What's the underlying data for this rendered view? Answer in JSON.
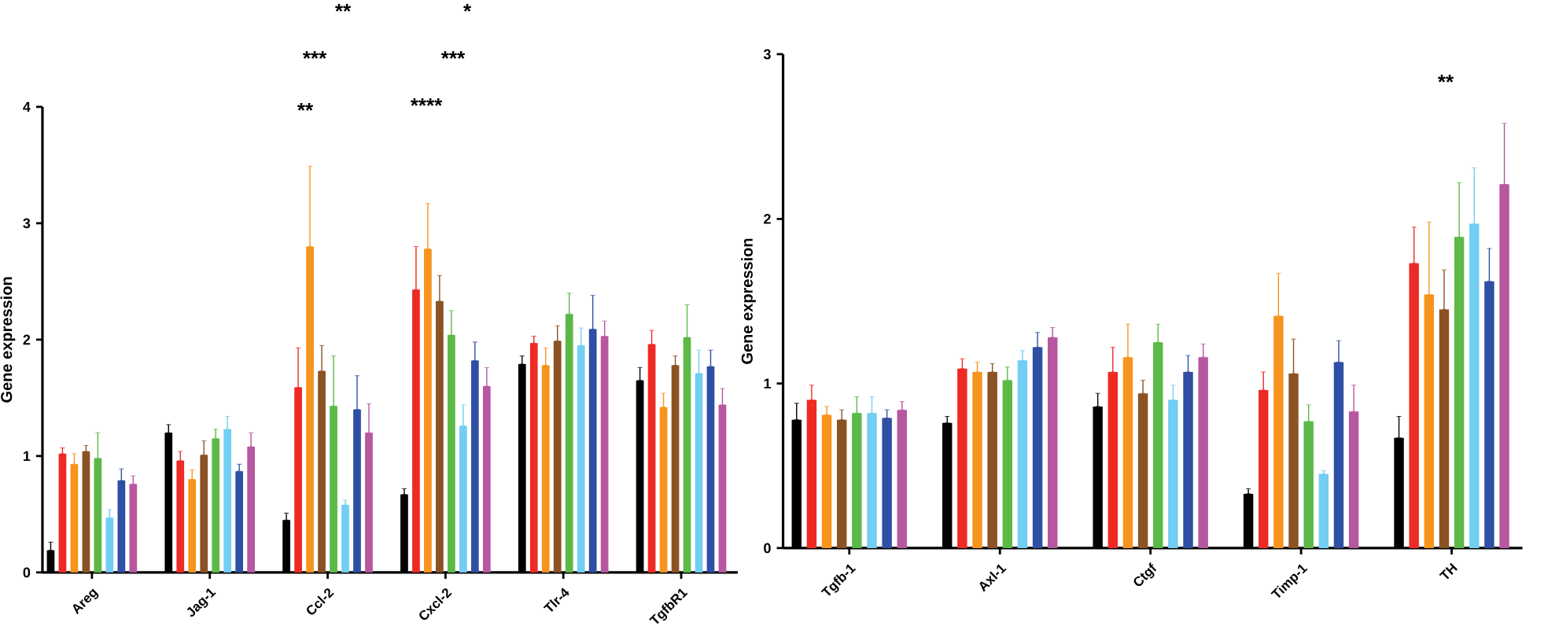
{
  "chart_data": [
    {
      "type": "bar",
      "ylabel": "Gene expression",
      "categories": [
        "Areg",
        "Jag-1",
        "Ccl-2",
        "Cxcl-2",
        "Tlr-4",
        "TgfbR1"
      ],
      "ylim": [
        0,
        4
      ],
      "yticks": [
        0,
        1,
        2,
        3,
        4
      ],
      "series": [
        {
          "color": "#000000",
          "values": [
            0.19,
            1.2,
            0.45,
            0.67,
            1.79,
            1.65
          ],
          "errors": [
            [
              0.19,
              0.26
            ],
            [
              1.2,
              1.27
            ],
            [
              0.45,
              0.51
            ],
            [
              0.67,
              0.72
            ],
            [
              1.79,
              1.86
            ],
            [
              1.65,
              1.76
            ]
          ]
        },
        {
          "color": "#ee2a24",
          "values": [
            1.02,
            0.96,
            1.59,
            2.43,
            1.97,
            1.96
          ],
          "errors": [
            [
              1.02,
              1.07
            ],
            [
              0.96,
              1.04
            ],
            [
              1.59,
              1.93
            ],
            [
              2.43,
              2.8
            ],
            [
              1.97,
              2.03
            ],
            [
              1.96,
              2.08
            ]
          ]
        },
        {
          "color": "#f7941d",
          "values": [
            0.93,
            0.8,
            2.8,
            2.78,
            1.78,
            1.42
          ],
          "errors": [
            [
              0.93,
              1.02
            ],
            [
              0.8,
              0.88
            ],
            [
              2.8,
              3.49
            ],
            [
              2.78,
              3.17
            ],
            [
              1.78,
              1.93
            ],
            [
              1.42,
              1.54
            ]
          ]
        },
        {
          "color": "#8b5223",
          "values": [
            1.04,
            1.01,
            1.73,
            2.33,
            1.99,
            1.78
          ],
          "errors": [
            [
              1.04,
              1.09
            ],
            [
              1.01,
              1.13
            ],
            [
              1.73,
              1.95
            ],
            [
              2.33,
              2.55
            ],
            [
              1.99,
              2.12
            ],
            [
              1.78,
              1.86
            ]
          ]
        },
        {
          "color": "#5cb947",
          "values": [
            0.98,
            1.15,
            1.43,
            2.04,
            2.22,
            2.02
          ],
          "errors": [
            [
              0.98,
              1.2
            ],
            [
              1.15,
              1.23
            ],
            [
              1.43,
              1.86
            ],
            [
              2.04,
              2.25
            ],
            [
              2.22,
              2.4
            ],
            [
              2.02,
              2.3
            ]
          ]
        },
        {
          "color": "#72cef2",
          "values": [
            0.47,
            1.23,
            0.58,
            1.26,
            1.95,
            1.71
          ],
          "errors": [
            [
              0.47,
              0.54
            ],
            [
              1.23,
              1.34
            ],
            [
              0.58,
              0.62
            ],
            [
              1.26,
              1.44
            ],
            [
              1.95,
              2.1
            ],
            [
              1.71,
              1.91
            ]
          ]
        },
        {
          "color": "#2e4fa3",
          "values": [
            0.79,
            0.87,
            1.4,
            1.82,
            2.09,
            1.77
          ],
          "errors": [
            [
              0.79,
              0.89
            ],
            [
              0.87,
              0.93
            ],
            [
              1.4,
              1.69
            ],
            [
              1.82,
              1.98
            ],
            [
              2.09,
              2.38
            ],
            [
              1.77,
              1.91
            ]
          ]
        },
        {
          "color": "#b7579f",
          "values": [
            0.76,
            1.08,
            1.2,
            1.6,
            2.03,
            1.44
          ],
          "errors": [
            [
              0.76,
              0.83
            ],
            [
              1.08,
              1.2
            ],
            [
              1.2,
              1.45
            ],
            [
              1.6,
              1.76
            ],
            [
              2.03,
              2.16
            ],
            [
              1.44,
              1.58
            ]
          ]
        }
      ],
      "annotations": [
        "**",
        "***",
        "**",
        "****",
        "***",
        "*"
      ]
    },
    {
      "type": "bar",
      "ylabel": "Gene expression",
      "categories": [
        "Tgfb-1",
        "Axl-1",
        "Ctgf",
        "Timp-1",
        "TH"
      ],
      "ylim": [
        0,
        3
      ],
      "yticks": [
        0,
        1,
        2,
        3
      ],
      "series": [
        {
          "color": "#000000",
          "values": [
            0.78,
            0.76,
            0.86,
            0.33,
            0.67
          ],
          "errors": [
            [
              0.78,
              0.88
            ],
            [
              0.76,
              0.8
            ],
            [
              0.86,
              0.94
            ],
            [
              0.33,
              0.36
            ],
            [
              0.67,
              0.8
            ]
          ]
        },
        {
          "color": "#ee2a24",
          "values": [
            0.9,
            1.09,
            1.07,
            0.96,
            1.73
          ],
          "errors": [
            [
              0.9,
              0.99
            ],
            [
              1.09,
              1.15
            ],
            [
              1.07,
              1.22
            ],
            [
              0.96,
              1.07
            ],
            [
              1.73,
              1.95
            ]
          ]
        },
        {
          "color": "#f7941d",
          "values": [
            0.81,
            1.07,
            1.16,
            1.41,
            1.54
          ],
          "errors": [
            [
              0.81,
              0.86
            ],
            [
              1.07,
              1.13
            ],
            [
              1.16,
              1.36
            ],
            [
              1.41,
              1.67
            ],
            [
              1.54,
              1.98
            ]
          ]
        },
        {
          "color": "#8b5223",
          "values": [
            0.78,
            1.07,
            0.94,
            1.06,
            1.45
          ],
          "errors": [
            [
              0.78,
              0.84
            ],
            [
              1.07,
              1.12
            ],
            [
              0.94,
              1.02
            ],
            [
              1.06,
              1.27
            ],
            [
              1.45,
              1.69
            ]
          ]
        },
        {
          "color": "#5cb947",
          "values": [
            0.82,
            1.02,
            1.25,
            0.77,
            1.89
          ],
          "errors": [
            [
              0.82,
              0.92
            ],
            [
              1.02,
              1.1
            ],
            [
              1.25,
              1.36
            ],
            [
              0.77,
              0.87
            ],
            [
              1.89,
              2.22
            ]
          ]
        },
        {
          "color": "#72cef2",
          "values": [
            0.82,
            1.14,
            0.9,
            0.45,
            1.97
          ],
          "errors": [
            [
              0.82,
              0.92
            ],
            [
              1.14,
              1.2
            ],
            [
              0.9,
              0.99
            ],
            [
              0.45,
              0.47
            ],
            [
              1.97,
              2.31
            ]
          ]
        },
        {
          "color": "#2e4fa3",
          "values": [
            0.79,
            1.22,
            1.07,
            1.13,
            1.62
          ],
          "errors": [
            [
              0.79,
              0.84
            ],
            [
              1.22,
              1.31
            ],
            [
              1.07,
              1.17
            ],
            [
              1.13,
              1.26
            ],
            [
              1.62,
              1.82
            ]
          ]
        },
        {
          "color": "#b7579f",
          "values": [
            0.84,
            1.28,
            1.16,
            0.83,
            2.21
          ],
          "errors": [
            [
              0.84,
              0.89
            ],
            [
              1.28,
              1.34
            ],
            [
              1.16,
              1.24
            ],
            [
              0.83,
              0.99
            ],
            [
              2.21,
              2.58
            ]
          ]
        }
      ],
      "annotations": [
        "**"
      ]
    }
  ]
}
